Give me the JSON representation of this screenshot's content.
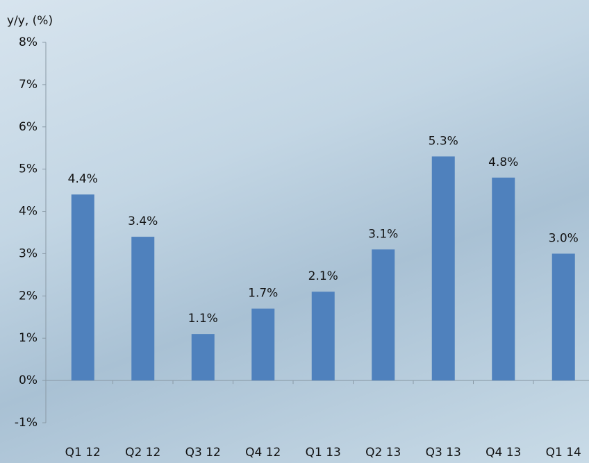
{
  "chart_data": {
    "type": "bar",
    "y_label": "y/y, (%)",
    "categories": [
      "Q1 12",
      "Q2 12",
      "Q3 12",
      "Q4 12",
      "Q1 13",
      "Q2 13",
      "Q3 13",
      "Q4 13",
      "Q1 14"
    ],
    "values": [
      4.4,
      3.4,
      1.1,
      1.7,
      2.1,
      3.1,
      5.3,
      4.8,
      3.0
    ],
    "value_labels": [
      "4.4%",
      "3.4%",
      "1.1%",
      "1.7%",
      "2.1%",
      "3.1%",
      "5.3%",
      "4.8%",
      "3.0%"
    ],
    "color": "#4f81bd",
    "ylim": [
      -1,
      8
    ],
    "yticks": [
      {
        "value": -1,
        "label": "-1%"
      },
      {
        "value": 0,
        "label": "0%"
      },
      {
        "value": 1,
        "label": "1%"
      },
      {
        "value": 2,
        "label": "2%"
      },
      {
        "value": 3,
        "label": "3%"
      },
      {
        "value": 4,
        "label": "4%"
      },
      {
        "value": 5,
        "label": "5%"
      },
      {
        "value": 6,
        "label": "6%"
      },
      {
        "value": 7,
        "label": "7%"
      },
      {
        "value": 8,
        "label": "8%"
      }
    ]
  }
}
